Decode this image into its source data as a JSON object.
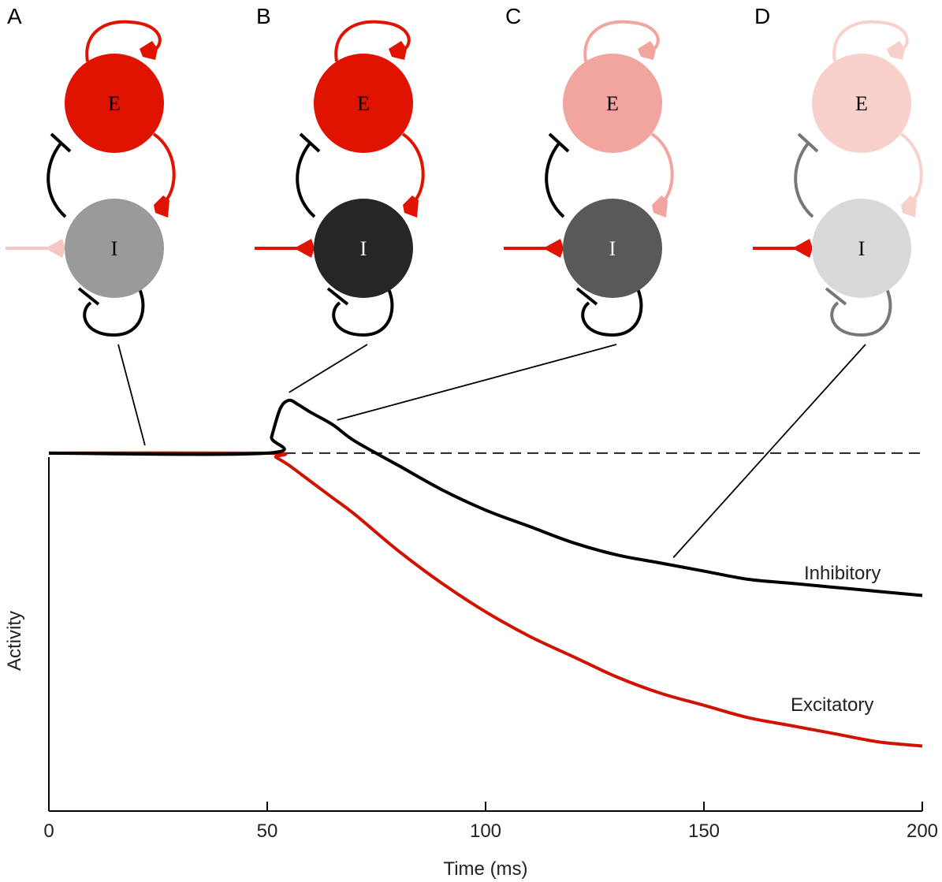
{
  "panels": [
    {
      "letter": "A",
      "e_label": "E",
      "i_label": "I",
      "e_color": "#e01200",
      "i_color": "#9a9a9a",
      "exc_color": "#e01200",
      "inh_color": "#000000",
      "input_color": "#f6c6c2",
      "i_text_color": "#000000",
      "time_ms": 22
    },
    {
      "letter": "B",
      "e_label": "E",
      "i_label": "I",
      "e_color": "#e01200",
      "i_color": "#262626",
      "exc_color": "#e01200",
      "inh_color": "#000000",
      "input_color": "#e01200",
      "i_text_color": "#ffffff",
      "time_ms": 55
    },
    {
      "letter": "C",
      "e_label": "E",
      "i_label": "I",
      "e_color": "#f2a49e",
      "i_color": "#595959",
      "exc_color": "#f2a49e",
      "inh_color": "#000000",
      "input_color": "#e01200",
      "i_text_color": "#ffffff",
      "time_ms": 66
    },
    {
      "letter": "D",
      "e_label": "E",
      "i_label": "I",
      "e_color": "#f8d0cc",
      "i_color": "#d9d9d9",
      "exc_color": "#f8d0cc",
      "inh_color": "#777777",
      "input_color": "#e01200",
      "i_text_color": "#000000",
      "time_ms": 143
    }
  ],
  "chart_data": {
    "type": "line",
    "xlabel": "Time (ms)",
    "ylabel": "Activity",
    "xlim": [
      0,
      200
    ],
    "ylim": [
      0,
      1
    ],
    "x_ticks": [
      0,
      50,
      100,
      150,
      200
    ],
    "baseline": {
      "style": "dashed",
      "value": 0.88,
      "x_range": [
        50,
        200
      ]
    },
    "series": [
      {
        "name": "Inhibitory",
        "color": "#000000",
        "x": [
          0,
          50,
          51,
          53,
          55,
          57,
          60,
          65,
          70,
          80,
          90,
          100,
          110,
          120,
          130,
          140,
          150,
          160,
          170,
          180,
          190,
          200
        ],
        "y": [
          0.88,
          0.88,
          0.92,
          0.99,
          1.01,
          1.0,
          0.98,
          0.95,
          0.91,
          0.85,
          0.79,
          0.74,
          0.7,
          0.66,
          0.63,
          0.61,
          0.59,
          0.57,
          0.56,
          0.55,
          0.54,
          0.53
        ]
      },
      {
        "name": "Excitatory",
        "color": "#d01200",
        "x": [
          0,
          50,
          52,
          55,
          60,
          65,
          70,
          80,
          90,
          100,
          110,
          120,
          130,
          140,
          150,
          160,
          170,
          180,
          190,
          200
        ],
        "y": [
          0.88,
          0.88,
          0.87,
          0.85,
          0.81,
          0.77,
          0.73,
          0.64,
          0.56,
          0.49,
          0.43,
          0.38,
          0.33,
          0.29,
          0.26,
          0.23,
          0.21,
          0.19,
          0.17,
          0.16
        ]
      }
    ]
  }
}
